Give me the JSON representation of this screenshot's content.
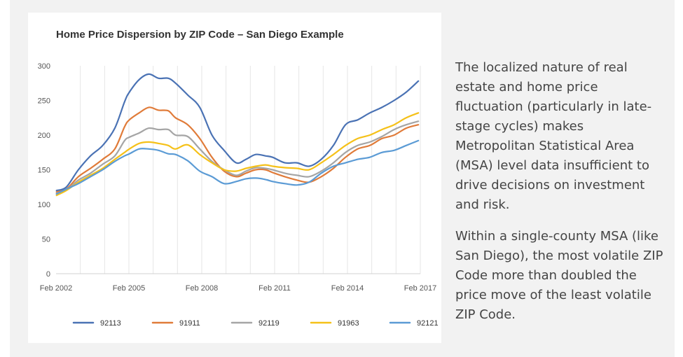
{
  "colors": {
    "92113": "#4a72b4",
    "91911": "#e07b39",
    "92119": "#a5a5a5",
    "91963": "#f5c119",
    "92121": "#5b9bd5"
  },
  "text": {
    "paragraph1": "The localized nature of real estate and home price fluctuation (particularly in late-stage cycles) makes Metropolitan Statistical Area (MSA) level data insufficient to drive decisions on investment and risk.",
    "paragraph2": "Within a single-county MSA (like San Diego), the most volatile ZIP Code more than doubled the price move of the least volatile ZIP Code."
  },
  "chart_data": {
    "type": "line",
    "title": "Home Price Dispersion by ZIP Code – San Diego Example",
    "xlabel": "",
    "ylabel": "",
    "ylim": [
      0,
      300
    ],
    "yticks": [
      "0",
      "50",
      "100",
      "150",
      "200",
      "250",
      "300"
    ],
    "xticks": [
      "Feb 2002",
      "Feb 2005",
      "Feb 2008",
      "Feb 2011",
      "Feb 2014",
      "Feb 2017"
    ],
    "xlim": [
      2002.08,
      2017.08
    ],
    "grid": "vertical",
    "legend": "bottom",
    "series": [
      {
        "name": "92113",
        "x": [
          2002.1,
          2002.5,
          2003.0,
          2003.5,
          2004.0,
          2004.5,
          2004.9,
          2005.1,
          2005.5,
          2005.9,
          2006.3,
          2006.7,
          2007.0,
          2007.5,
          2008.0,
          2008.5,
          2009.0,
          2009.5,
          2009.9,
          2010.3,
          2010.7,
          2011.0,
          2011.5,
          2012.0,
          2012.5,
          2013.0,
          2013.5,
          2014.0,
          2014.5,
          2015.0,
          2015.5,
          2016.0,
          2016.5,
          2017.0
        ],
        "values": [
          120,
          125,
          150,
          170,
          185,
          210,
          248,
          262,
          280,
          288,
          282,
          282,
          275,
          258,
          240,
          200,
          178,
          160,
          165,
          172,
          170,
          168,
          160,
          160,
          155,
          165,
          185,
          215,
          222,
          232,
          240,
          250,
          262,
          278
        ]
      },
      {
        "name": "91911",
        "x": [
          2002.1,
          2002.5,
          2003.0,
          2003.5,
          2004.0,
          2004.5,
          2004.9,
          2005.1,
          2005.5,
          2005.9,
          2006.3,
          2006.7,
          2007.0,
          2007.5,
          2008.0,
          2008.5,
          2009.0,
          2009.5,
          2009.9,
          2010.3,
          2010.7,
          2011.0,
          2011.5,
          2012.0,
          2012.5,
          2013.0,
          2013.5,
          2014.0,
          2014.5,
          2015.0,
          2015.5,
          2016.0,
          2016.5,
          2017.0
        ],
        "values": [
          118,
          122,
          140,
          152,
          165,
          180,
          212,
          222,
          232,
          240,
          236,
          235,
          225,
          215,
          195,
          168,
          148,
          140,
          145,
          150,
          150,
          146,
          140,
          135,
          132,
          140,
          152,
          168,
          180,
          185,
          195,
          200,
          210,
          215
        ]
      },
      {
        "name": "92119",
        "x": [
          2002.1,
          2002.5,
          2003.0,
          2003.5,
          2004.0,
          2004.5,
          2004.9,
          2005.1,
          2005.5,
          2005.9,
          2006.3,
          2006.7,
          2007.0,
          2007.5,
          2008.0,
          2008.5,
          2009.0,
          2009.5,
          2009.9,
          2010.3,
          2010.7,
          2011.0,
          2011.5,
          2012.0,
          2012.5,
          2013.0,
          2013.5,
          2014.0,
          2014.5,
          2015.0,
          2015.5,
          2016.0,
          2016.5,
          2017.0
        ],
        "values": [
          116,
          121,
          135,
          145,
          158,
          170,
          192,
          197,
          203,
          210,
          208,
          208,
          200,
          198,
          180,
          162,
          150,
          142,
          148,
          153,
          152,
          150,
          145,
          142,
          140,
          148,
          160,
          175,
          185,
          190,
          198,
          208,
          215,
          220
        ]
      },
      {
        "name": "91963",
        "x": [
          2002.1,
          2002.5,
          2003.0,
          2003.5,
          2004.0,
          2004.5,
          2004.9,
          2005.1,
          2005.5,
          2005.9,
          2006.3,
          2006.7,
          2007.0,
          2007.5,
          2008.0,
          2008.5,
          2009.0,
          2009.5,
          2009.9,
          2010.3,
          2010.7,
          2011.0,
          2011.5,
          2012.0,
          2012.5,
          2013.0,
          2013.5,
          2014.0,
          2014.5,
          2015.0,
          2015.5,
          2016.0,
          2016.5,
          2017.0
        ],
        "values": [
          113,
          120,
          132,
          142,
          152,
          165,
          175,
          180,
          188,
          190,
          188,
          185,
          180,
          186,
          172,
          160,
          150,
          148,
          152,
          155,
          157,
          155,
          153,
          152,
          150,
          160,
          172,
          185,
          195,
          200,
          208,
          215,
          225,
          232
        ]
      },
      {
        "name": "92121",
        "x": [
          2002.1,
          2002.5,
          2003.0,
          2003.5,
          2004.0,
          2004.5,
          2004.9,
          2005.1,
          2005.5,
          2005.9,
          2006.3,
          2006.7,
          2007.0,
          2007.5,
          2008.0,
          2008.5,
          2009.0,
          2009.5,
          2009.9,
          2010.3,
          2010.7,
          2011.0,
          2011.5,
          2012.0,
          2012.5,
          2013.0,
          2013.5,
          2014.0,
          2014.5,
          2015.0,
          2015.5,
          2016.0,
          2016.5,
          2017.0
        ],
        "values": [
          115,
          122,
          130,
          140,
          150,
          162,
          170,
          173,
          180,
          180,
          178,
          173,
          172,
          163,
          148,
          140,
          130,
          133,
          137,
          138,
          136,
          133,
          130,
          128,
          132,
          145,
          155,
          160,
          165,
          168,
          175,
          178,
          185,
          192
        ]
      }
    ]
  }
}
